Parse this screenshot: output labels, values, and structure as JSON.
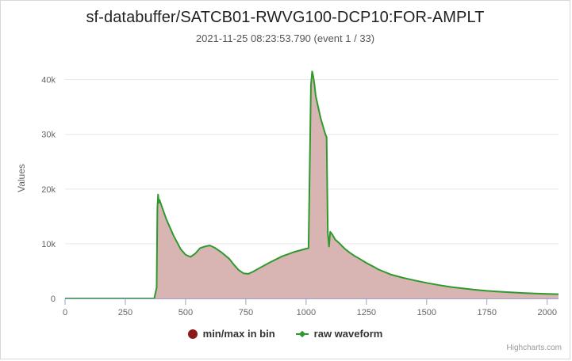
{
  "chart_data": {
    "type": "area",
    "title": "sf-databuffer/SATCB01-RWVG100-DCP10:FOR-AMPLT",
    "subtitle": "2021-11-25 08:23:53.790 (event 1 / 33)",
    "xlabel": "",
    "ylabel": "Values",
    "xlim": [
      0,
      2047
    ],
    "ylim": [
      0,
      44000
    ],
    "x_ticks": [
      "0",
      "250",
      "500",
      "750",
      "1000",
      "1250",
      "1500",
      "1750",
      "2000"
    ],
    "y_ticks": [
      "0",
      "10k",
      "20k",
      "30k",
      "40k"
    ],
    "grid": true,
    "legend_position": "bottom",
    "series": [
      {
        "name": "min/max in bin",
        "type": "area",
        "color": "#8b1a1a",
        "fill": "#d8b4b3",
        "x": [
          0,
          370,
          380,
          383,
          386,
          389,
          392,
          400,
          420,
          450,
          480,
          500,
          520,
          540,
          560,
          580,
          600,
          620,
          650,
          680,
          700,
          720,
          740,
          760,
          780,
          800,
          850,
          900,
          950,
          1000,
          1010,
          1020,
          1025,
          1030,
          1035,
          1040,
          1060,
          1080,
          1085,
          1090,
          1095,
          1100,
          1110,
          1120,
          1140,
          1160,
          1180,
          1200,
          1220,
          1250,
          1280,
          1300,
          1350,
          1400,
          1450,
          1500,
          1550,
          1600,
          1650,
          1700,
          1750,
          1800,
          1850,
          1900,
          1950,
          2000,
          2047
        ],
        "values": [
          0,
          0,
          2000,
          16500,
          19000,
          17500,
          18000,
          17000,
          14500,
          11500,
          9000,
          8000,
          7600,
          8200,
          9200,
          9500,
          9700,
          9300,
          8400,
          7300,
          6200,
          5200,
          4600,
          4500,
          4900,
          5400,
          6600,
          7700,
          8500,
          9100,
          9200,
          39000,
          41500,
          40500,
          39000,
          37000,
          33000,
          30000,
          29500,
          12000,
          9500,
          12200,
          11600,
          10800,
          10000,
          9100,
          8400,
          7800,
          7300,
          6500,
          5800,
          5300,
          4400,
          3800,
          3300,
          2850,
          2450,
          2100,
          1850,
          1600,
          1400,
          1250,
          1120,
          1000,
          900,
          830,
          780
        ]
      },
      {
        "name": "raw waveform",
        "type": "line",
        "color": "#2e9a2e",
        "x": [
          0,
          370,
          380,
          383,
          386,
          389,
          392,
          400,
          420,
          450,
          480,
          500,
          520,
          540,
          560,
          580,
          600,
          620,
          650,
          680,
          700,
          720,
          740,
          760,
          780,
          800,
          850,
          900,
          950,
          1000,
          1010,
          1020,
          1025,
          1030,
          1035,
          1040,
          1060,
          1080,
          1085,
          1090,
          1095,
          1100,
          1110,
          1120,
          1140,
          1160,
          1180,
          1200,
          1220,
          1250,
          1280,
          1300,
          1350,
          1400,
          1450,
          1500,
          1550,
          1600,
          1650,
          1700,
          1750,
          1800,
          1850,
          1900,
          1950,
          2000,
          2047
        ],
        "values": [
          0,
          0,
          2000,
          16500,
          19000,
          17500,
          18000,
          17000,
          14500,
          11500,
          9000,
          8000,
          7600,
          8200,
          9200,
          9500,
          9700,
          9300,
          8400,
          7300,
          6200,
          5200,
          4600,
          4500,
          4900,
          5400,
          6600,
          7700,
          8500,
          9100,
          9200,
          39000,
          41500,
          40500,
          39000,
          37000,
          33000,
          30000,
          29500,
          12000,
          9500,
          12200,
          11600,
          10800,
          10000,
          9100,
          8400,
          7800,
          7300,
          6500,
          5800,
          5300,
          4400,
          3800,
          3300,
          2850,
          2450,
          2100,
          1850,
          1600,
          1400,
          1250,
          1120,
          1000,
          900,
          830,
          780
        ]
      }
    ]
  },
  "legend": {
    "items": [
      {
        "label": "min/max in bin",
        "color": "#8b1a1a",
        "marker": "circle"
      },
      {
        "label": "raw waveform",
        "color": "#2e9a2e",
        "marker": "line-diamond"
      }
    ]
  },
  "credits": "Highcharts.com"
}
